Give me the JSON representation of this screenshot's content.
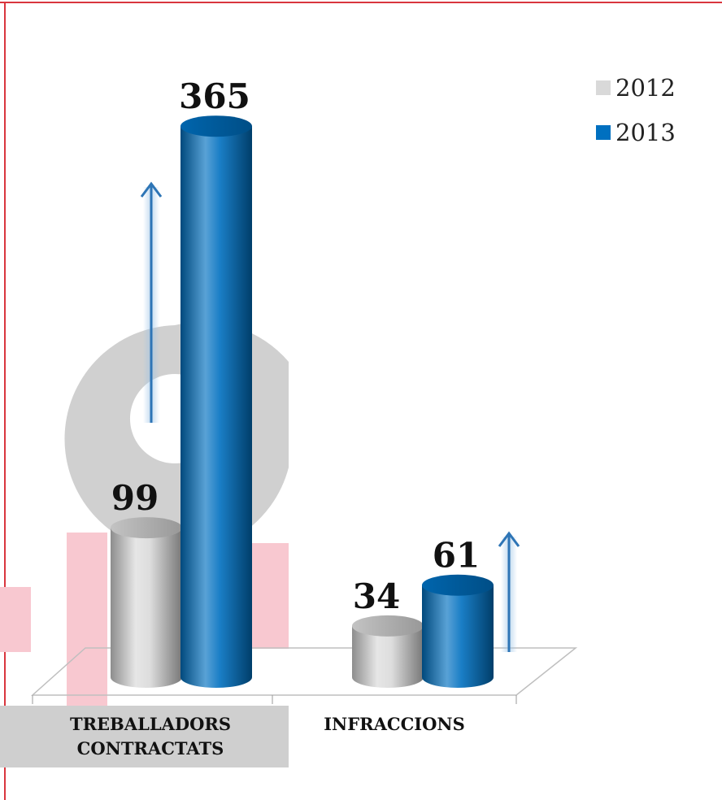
{
  "chart_data": {
    "type": "bar3d",
    "categories": [
      "TREBALLADORS CONTRACTATS",
      "INFRACCIONS"
    ],
    "series": [
      {
        "name": "2012",
        "color": "#d9d9d9",
        "values": [
          99,
          34
        ]
      },
      {
        "name": "2013",
        "color": "#0070c0",
        "values": [
          365,
          61
        ]
      }
    ],
    "legend": "top-right"
  }
}
